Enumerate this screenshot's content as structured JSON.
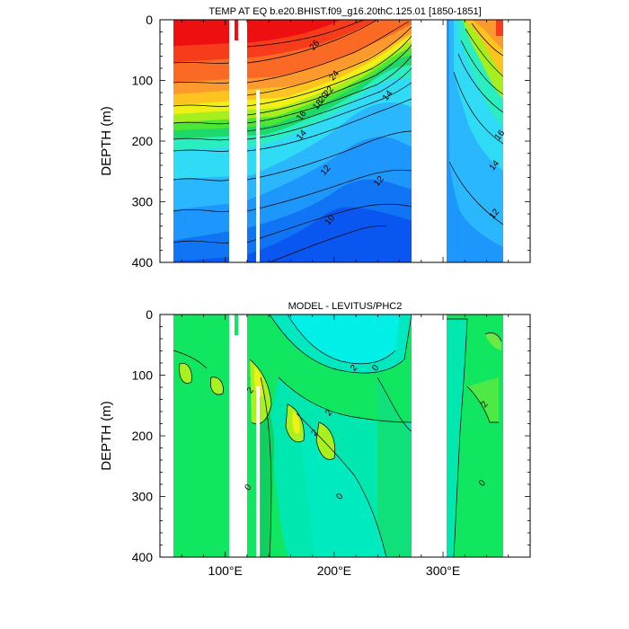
{
  "chart_data": [
    {
      "type": "heatmap",
      "title": "TEMP AT EQ b.e20.BHIST.f09_g16.20thC.125.01 [1850-1851]",
      "ylabel": "DEPTH (m)",
      "xlabel": "",
      "xlim": [
        40,
        380
      ],
      "ylim": [
        400,
        0
      ],
      "y_reversed": true,
      "x_ticks": [
        {
          "value": 100,
          "label": "100°E"
        },
        {
          "value": 200,
          "label": "200°E"
        },
        {
          "value": 300,
          "label": "300°E"
        }
      ],
      "y_ticks": [
        0,
        100,
        200,
        300,
        400
      ],
      "missing_x_ranges": [
        [
          97,
          107
        ],
        [
          115,
          120
        ],
        [
          127,
          130
        ],
        [
          278,
          312
        ]
      ],
      "contour_labels": [
        {
          "text": "26",
          "x": 182,
          "y": 42
        },
        {
          "text": "24",
          "x": 200,
          "y": 92
        },
        {
          "text": "22",
          "x": 195,
          "y": 118
        },
        {
          "text": "20",
          "x": 190,
          "y": 128
        },
        {
          "text": "18",
          "x": 185,
          "y": 140
        },
        {
          "text": "16",
          "x": 170,
          "y": 158
        },
        {
          "text": "14",
          "x": 170,
          "y": 190
        },
        {
          "text": "12",
          "x": 192,
          "y": 248
        },
        {
          "text": "10",
          "x": 196,
          "y": 330
        },
        {
          "text": "14",
          "x": 249,
          "y": 125
        },
        {
          "text": "12",
          "x": 241,
          "y": 266
        },
        {
          "text": "16",
          "x": 352,
          "y": 190
        },
        {
          "text": "14",
          "x": 347,
          "y": 240
        },
        {
          "text": "12",
          "x": 347,
          "y": 320
        }
      ],
      "colors": {
        "low": "#0a1fd0",
        "high": "#ee0000"
      }
    },
    {
      "type": "heatmap",
      "title": "MODEL - LEVITUS/PHC2",
      "ylabel": "DEPTH (m)",
      "xlabel": "",
      "xlim": [
        40,
        380
      ],
      "ylim": [
        400,
        0
      ],
      "y_reversed": true,
      "x_ticks": [
        {
          "value": 100,
          "label": "100°E"
        },
        {
          "value": 200,
          "label": "200°E"
        },
        {
          "value": 300,
          "label": "300°E"
        }
      ],
      "y_ticks": [
        0,
        100,
        200,
        300,
        400
      ],
      "missing_x_ranges": [
        [
          97,
          107
        ],
        [
          115,
          120
        ],
        [
          127,
          130
        ],
        [
          278,
          312
        ]
      ],
      "contour_labels": [
        {
          "text": "2",
          "x": 218,
          "y": 88
        },
        {
          "text": "0",
          "x": 238,
          "y": 88
        },
        {
          "text": "2",
          "x": 123,
          "y": 125
        },
        {
          "text": "2",
          "x": 195,
          "y": 162
        },
        {
          "text": "2",
          "x": 182,
          "y": 195
        },
        {
          "text": "0",
          "x": 205,
          "y": 300
        },
        {
          "text": "0",
          "x": 121,
          "y": 285
        },
        {
          "text": "2",
          "x": 338,
          "y": 148
        },
        {
          "text": "0",
          "x": 336,
          "y": 278
        }
      ],
      "colors": {
        "low": "#00e8c0",
        "high": "#ffff00"
      }
    }
  ]
}
